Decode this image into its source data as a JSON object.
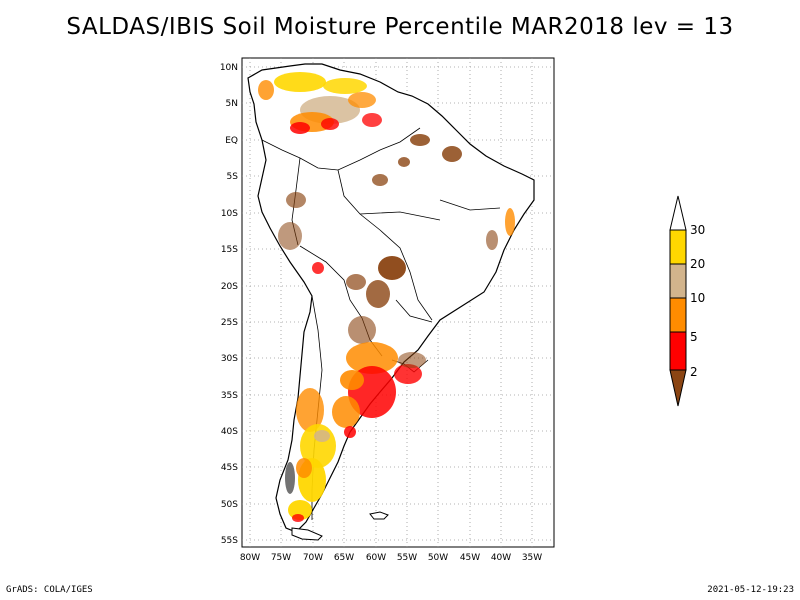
{
  "title": "SALDAS/IBIS Soil Moisture Percentile MAR2018 lev = 13",
  "footer": {
    "left": "GrADS: COLA/IGES",
    "right": "2021-05-12-19:23"
  },
  "map": {
    "lat_labels": [
      "10N",
      "5N",
      "EQ",
      "5S",
      "10S",
      "15S",
      "20S",
      "25S",
      "30S",
      "35S",
      "40S",
      "45S",
      "50S",
      "55S"
    ],
    "lon_labels": [
      "80W",
      "75W",
      "70W",
      "65W",
      "60W",
      "55W",
      "50W",
      "45W",
      "40W",
      "35W"
    ],
    "grid": "dotted"
  },
  "legend": {
    "labels": [
      "30",
      "20",
      "10",
      "5",
      "2"
    ],
    "colors": {
      "above_30": "#ffffff",
      "20_30": "#ffd700",
      "10_20": "#d2b48c",
      "5_10": "#ff8c00",
      "2_5": "#ff0000",
      "below_2": "#8b4513"
    }
  }
}
